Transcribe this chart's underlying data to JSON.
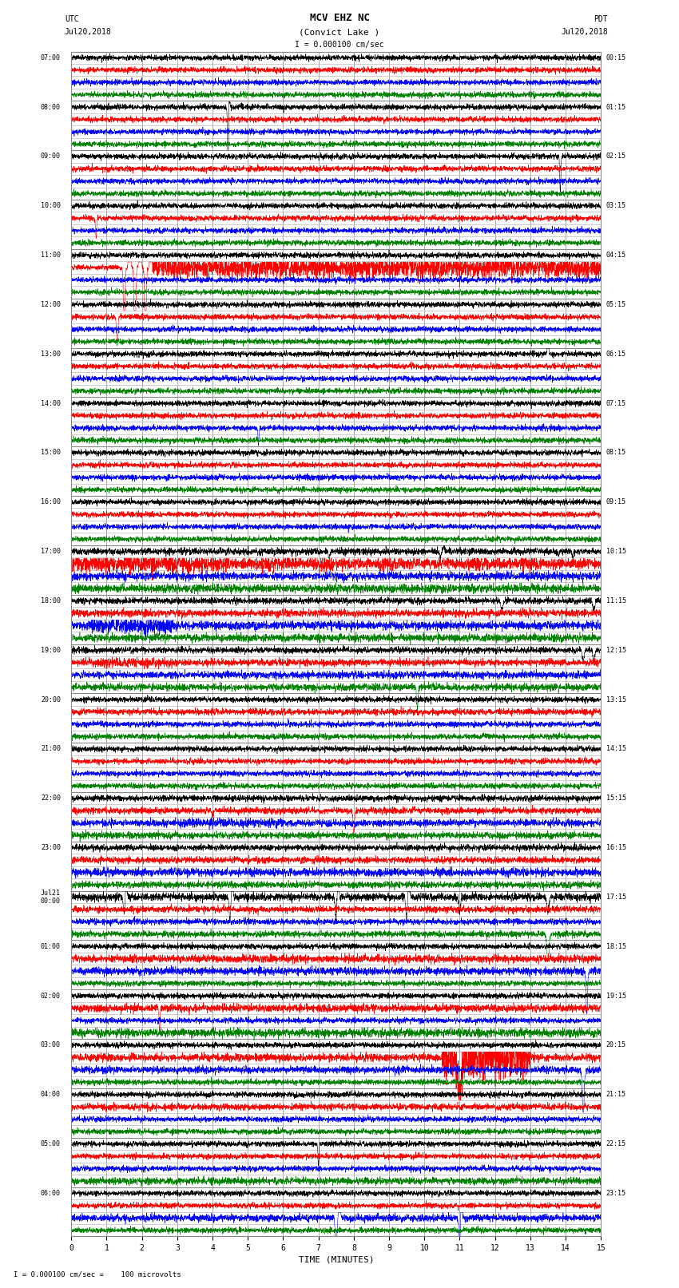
{
  "title_line1": "MCV EHZ NC",
  "title_line2": "(Convict Lake )",
  "title_scale": "I = 0.000100 cm/sec",
  "left_header_line1": "UTC",
  "left_header_line2": "Jul20,2018",
  "right_header_line1": "PDT",
  "right_header_line2": "Jul20,2018",
  "xlabel": "TIME (MINUTES)",
  "footer": "I = 0.000100 cm/sec =    100 microvolts",
  "utc_labels": [
    "07:00",
    "08:00",
    "09:00",
    "10:00",
    "11:00",
    "12:00",
    "13:00",
    "14:00",
    "15:00",
    "16:00",
    "17:00",
    "18:00",
    "19:00",
    "20:00",
    "21:00",
    "22:00",
    "23:00",
    "Jul21\n00:00",
    "01:00",
    "02:00",
    "03:00",
    "04:00",
    "05:00",
    "06:00"
  ],
  "pdt_labels": [
    "00:15",
    "01:15",
    "02:15",
    "03:15",
    "04:15",
    "05:15",
    "06:15",
    "07:15",
    "08:15",
    "09:15",
    "10:15",
    "11:15",
    "12:15",
    "13:15",
    "14:15",
    "15:15",
    "16:15",
    "17:15",
    "18:15",
    "19:15",
    "20:15",
    "21:15",
    "22:15",
    "23:15"
  ],
  "n_minutes": 15,
  "background_color": "#ffffff",
  "grid_color": "#888888",
  "subgrid_color": "#bbbbbb"
}
